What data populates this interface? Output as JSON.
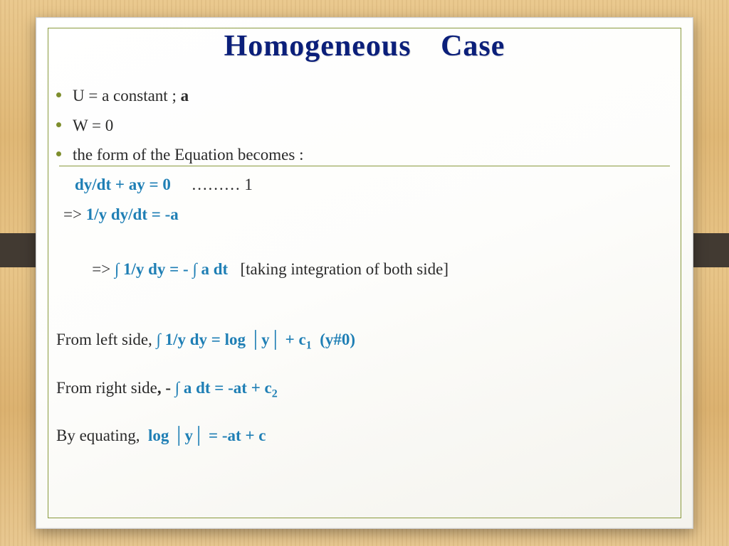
{
  "title": "Homogeneous Case",
  "bullets": {
    "b1_pre": "U  =  a constant ; ",
    "b1_bold": "a",
    "b2": "W = 0",
    "b3": "the form of the Equation becomes :"
  },
  "lines": {
    "eq1_blue": "dy/dt + ay = 0",
    "eq1_after": "     ……… 1",
    "eq2_arrow": "=> ",
    "eq2_blue": "1/y dy/dt = -a",
    "eq3_arrow": " => ",
    "eq3_blue": "∫ 1/y dy = - ∫ a dt",
    "eq3_note": "   [taking integration of both side]",
    "left_pre": "From left side, ",
    "left_blue_a": "∫ 1/y dy = log │y│ + c",
    "left_blue_sub": "1",
    "left_blue_b": "  (y#0)",
    "right_pre": "From right side",
    "right_bold": ", - ",
    "right_blue_a": "∫ a dt = -at + c",
    "right_blue_sub": "2",
    "equate_pre": "By equating,  ",
    "equate_blue": "log │y│ = -at + c"
  },
  "colors": {
    "title": "#0b1f7a",
    "accent": "#1f7fb5",
    "bullet": "#7e8e2e",
    "border": "#8a9a3e",
    "text": "#2a2a2a",
    "tab": "#423a32"
  }
}
